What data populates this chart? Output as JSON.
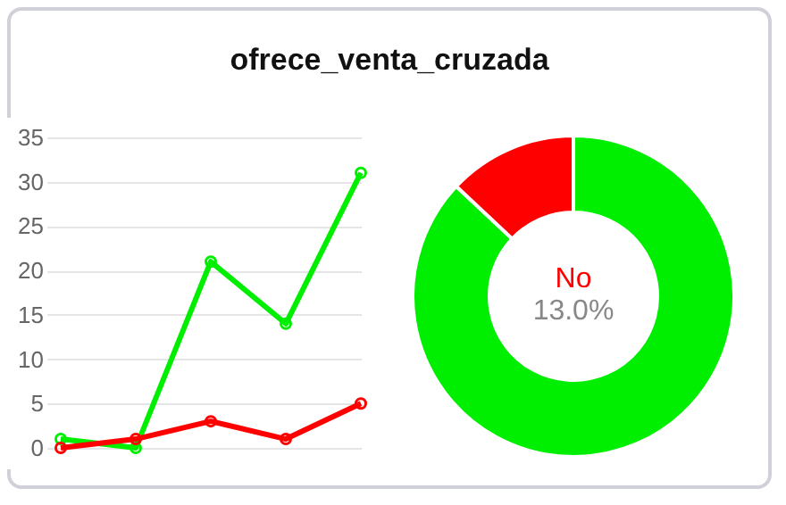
{
  "chart_data": [
    {
      "type": "line",
      "title": "ofrece_venta_cruzada",
      "categories": [
        null,
        null,
        null,
        null,
        null
      ],
      "series": [
        {
          "color": "#00ee00",
          "values": [
            1,
            0,
            21,
            14,
            31
          ]
        },
        {
          "color": "#ff0000",
          "values": [
            0,
            1,
            3,
            1,
            5
          ]
        }
      ],
      "ylim": [
        0,
        35
      ],
      "yticks": [
        0,
        5,
        10,
        15,
        20,
        25,
        30,
        35
      ],
      "grid": "y",
      "marker": "circle",
      "line_style": "solid"
    },
    {
      "type": "donut",
      "categories": [
        null,
        "No"
      ],
      "values": [
        87,
        13
      ],
      "colors": [
        "#00ee00",
        "#ff0000"
      ],
      "value_labels": [
        null,
        "13.0%"
      ]
    }
  ]
}
